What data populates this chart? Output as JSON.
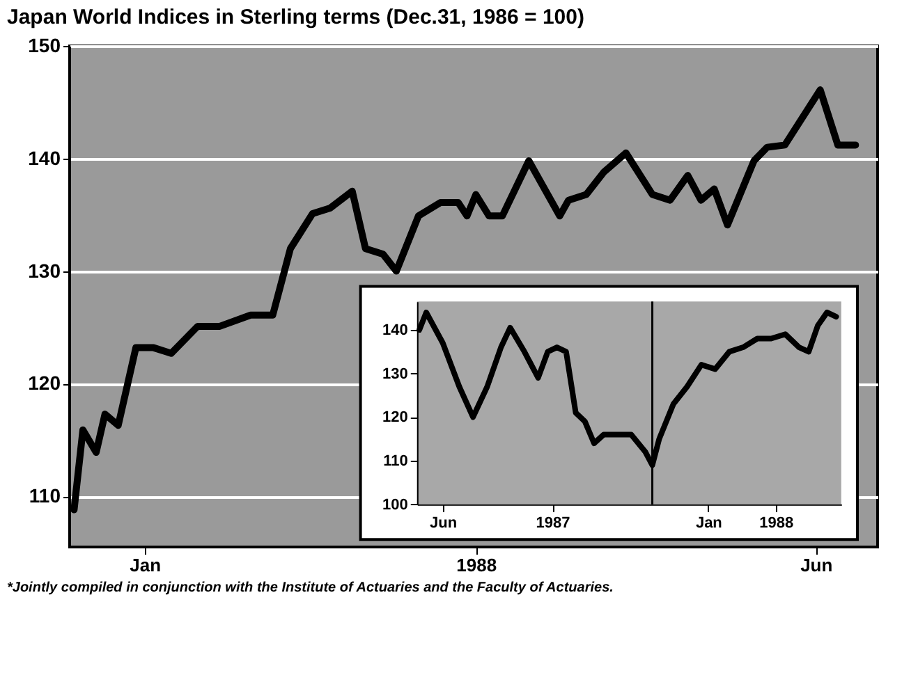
{
  "chart_data": [
    {
      "type": "line",
      "title": "Japan World Indices in Sterling terms (Dec.31, 1986 = 100)",
      "x": [
        "1987-12-16",
        "1987-12-18",
        "1987-12-21",
        "1987-12-23",
        "1987-12-26",
        "1987-12-30",
        "1988-01-03",
        "1988-01-07",
        "1988-01-13",
        "1988-01-18",
        "1988-01-25",
        "1988-01-30",
        "1988-02-03",
        "1988-02-08",
        "1988-02-12",
        "1988-02-17",
        "1988-02-20",
        "1988-02-24",
        "1988-02-27",
        "1988-03-03",
        "1988-03-08",
        "1988-03-12",
        "1988-03-14",
        "1988-03-16",
        "1988-03-19",
        "1988-03-22",
        "1988-03-28",
        "1988-04-04",
        "1988-04-06",
        "1988-04-10",
        "1988-04-14",
        "1988-04-19",
        "1988-04-25",
        "1988-04-29",
        "1988-05-03",
        "1988-05-06",
        "1988-05-09",
        "1988-05-12",
        "1988-05-18",
        "1988-05-21",
        "1988-05-25",
        "1988-06-02",
        "1988-06-06",
        "1988-06-10"
      ],
      "series": [
        {
          "color": "#000000",
          "values": [
            108.8,
            115.9,
            113.9,
            117.3,
            116.3,
            123.2,
            123.2,
            122.7,
            125.1,
            125.1,
            126.1,
            126.1,
            132,
            135.1,
            135.6,
            137.1,
            132,
            131.5,
            130,
            134.9,
            136.1,
            136.1,
            134.9,
            136.8,
            134.9,
            134.9,
            139.8,
            134.9,
            136.3,
            136.8,
            138.8,
            140.5,
            136.8,
            136.3,
            138.5,
            136.3,
            137.3,
            134.1,
            139.8,
            141,
            141.2,
            146.1,
            141.2,
            141.2
          ]
        }
      ],
      "xlim": [
        "1987-12-15",
        "1988-06-15"
      ],
      "xticks": [
        {
          "value": "1988-01-01",
          "label": "Jan"
        },
        {
          "value": "1988-03-16",
          "label": "1988"
        },
        {
          "value": "1988-06-01",
          "label": "Jun"
        }
      ],
      "ylim": [
        105.5,
        150
      ],
      "yticks": [
        110,
        120,
        130,
        140,
        150
      ],
      "grid": "y",
      "legend": false,
      "line_style": "solid",
      "marker": "none",
      "annotations": [
        "*Jointly compiled in conjunction with the Institute of Actuaries and the Faculty of Actuaries."
      ]
    },
    {
      "type": "line",
      "x": [
        "1986-04-11",
        "1986-04-26",
        "1986-06-01",
        "1986-07-07",
        "1986-08-06",
        "1986-09-06",
        "1986-10-06",
        "1986-10-26",
        "1986-11-26",
        "1986-12-26",
        "1987-01-16",
        "1987-02-05",
        "1987-02-25",
        "1987-03-18",
        "1987-04-07",
        "1987-04-27",
        "1987-05-18",
        "1987-06-17",
        "1987-07-17",
        "1987-08-17",
        "1987-09-01",
        "1987-09-16",
        "1987-10-17",
        "1987-11-16",
        "1987-12-17",
        "1988-01-16",
        "1988-02-16",
        "1988-03-17",
        "1988-04-17",
        "1988-05-17",
        "1988-06-17",
        "1988-07-17",
        "1988-08-07",
        "1988-08-27",
        "1988-09-16",
        "1988-10-06"
      ],
      "series": [
        {
          "color": "#000000",
          "values": [
            140,
            144,
            137,
            127,
            120,
            127,
            136,
            140.5,
            135,
            129,
            135,
            136,
            135,
            121,
            119,
            114,
            116,
            116,
            116,
            112,
            109,
            115,
            123,
            127,
            132,
            131,
            135,
            136,
            138,
            138,
            139,
            136,
            135,
            141,
            144,
            143
          ]
        }
      ],
      "xlim": [
        "1986-04-06",
        "1988-10-17"
      ],
      "xticks": [
        {
          "value": "1986-06-01",
          "label": "Jun"
        },
        {
          "value": "1987-01-26",
          "label": "1987"
        },
        {
          "value": "1988-01-01",
          "label": "Jan"
        },
        {
          "value": "1988-05-27",
          "label": "1988"
        }
      ],
      "ylim": [
        100,
        146.5
      ],
      "yticks": [
        100,
        110,
        120,
        130,
        140
      ],
      "ref_lines": [
        {
          "axis": "x",
          "value": "1987-09-01",
          "color": "#000000"
        }
      ],
      "legend": false,
      "line_style": "solid",
      "marker": "none"
    }
  ]
}
